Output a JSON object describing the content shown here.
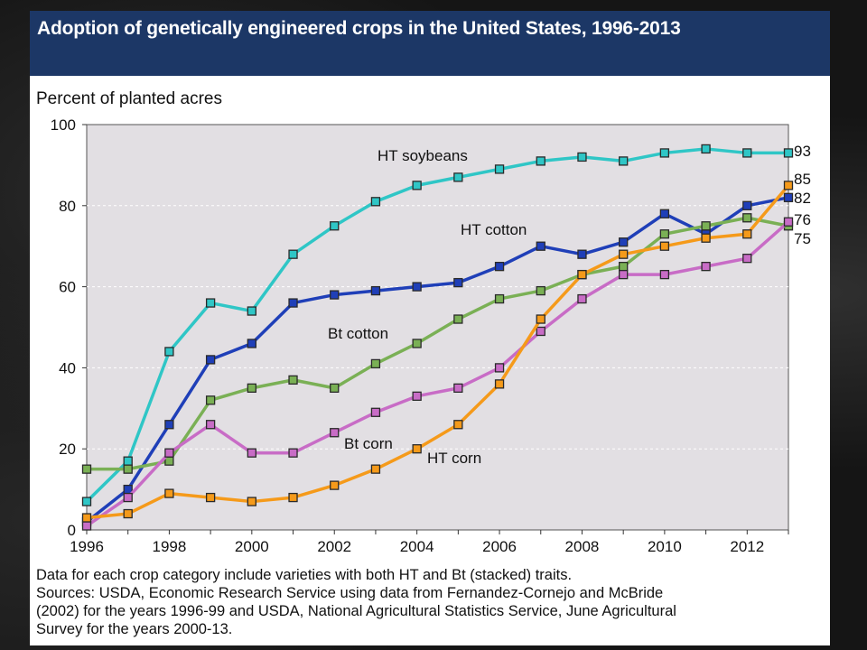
{
  "title": "Adoption of genetically engineered crops in the United States, 1996-2013",
  "ylabel": "Percent of planted acres",
  "notes": [
    "Data for each crop category include varieties with both HT and Bt (stacked) traits.",
    "Sources: USDA, Economic Research Service using data from Fernandez-Cornejo and McBride",
    "(2002) for the years 1996-99 and USDA, National Agricultural Statistics Service, June Agricultural",
    "Survey for the years 2000-13."
  ],
  "colors": {
    "header": "#1c3766",
    "plot_background": "#e2dfe3",
    "HT soybeans": "#2fc6c6",
    "HT cotton": "#1f3fb8",
    "Bt cotton": "#7ab055",
    "Bt corn": "#c86cc6",
    "HT corn": "#f59a1a"
  },
  "chart_data": {
    "type": "line",
    "title": "Adoption of genetically engineered crops in the United States, 1996-2013",
    "xlabel": "",
    "ylabel": "Percent of planted acres",
    "xlim": [
      1996,
      2013
    ],
    "ylim": [
      0,
      100
    ],
    "x_ticks": [
      1996,
      1998,
      2000,
      2002,
      2004,
      2006,
      2008,
      2010,
      2012
    ],
    "y_ticks": [
      0,
      20,
      40,
      60,
      80,
      100
    ],
    "grid": "horizontal dashed",
    "legend": "inline labels",
    "x": [
      1996,
      1997,
      1998,
      1999,
      2000,
      2001,
      2002,
      2003,
      2004,
      2005,
      2006,
      2007,
      2008,
      2009,
      2010,
      2011,
      2012,
      2013
    ],
    "series": [
      {
        "name": "HT soybeans",
        "end_label": "93",
        "values": [
          7,
          17,
          44,
          56,
          54,
          68,
          75,
          81,
          85,
          87,
          89,
          91,
          92,
          91,
          93,
          94,
          93,
          93
        ]
      },
      {
        "name": "HT cotton",
        "end_label": "82",
        "values": [
          2,
          10,
          26,
          42,
          46,
          56,
          58,
          59,
          60,
          61,
          65,
          70,
          68,
          71,
          78,
          73,
          80,
          82
        ]
      },
      {
        "name": "Bt cotton",
        "end_label": "75",
        "values": [
          15,
          15,
          17,
          32,
          35,
          37,
          35,
          41,
          46,
          52,
          57,
          59,
          63,
          65,
          73,
          75,
          77,
          75
        ]
      },
      {
        "name": "Bt corn",
        "end_label": "76",
        "values": [
          1,
          8,
          19,
          26,
          19,
          19,
          24,
          29,
          33,
          35,
          40,
          49,
          57,
          63,
          63,
          65,
          67,
          76
        ]
      },
      {
        "name": "HT corn",
        "end_label": "85",
        "values": [
          3,
          4,
          9,
          8,
          7,
          8,
          11,
          15,
          20,
          26,
          36,
          52,
          63,
          68,
          70,
          72,
          73,
          85
        ]
      }
    ]
  }
}
